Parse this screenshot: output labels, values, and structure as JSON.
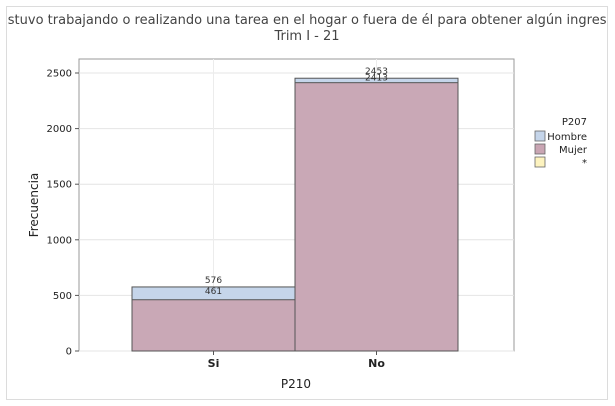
{
  "chart_data": {
    "type": "bar",
    "title": "¿Estuvo trabajando o realizando una tarea en el hogar o fuera de él para obtener algún ingreso?",
    "subtitle": "Trim I - 21",
    "xlabel": "P210",
    "ylabel": "Frecuencia",
    "categories": [
      "Si",
      "No"
    ],
    "ylim": [
      0,
      2600
    ],
    "yticks": [
      0,
      500,
      1000,
      1500,
      2000,
      2500
    ],
    "grid": true,
    "overlapping": true,
    "series": [
      {
        "name": "Hombre",
        "values": [
          576,
          2453
        ],
        "color": "#c5d5ea"
      },
      {
        "name": "Mujer",
        "values": [
          461,
          2413
        ],
        "color": "#c9a5b3"
      },
      {
        "name": "*",
        "values": [
          0,
          0
        ],
        "color": "#fdf3bf"
      }
    ],
    "data_labels": [
      {
        "category": "Si",
        "labels": [
          "576",
          "461"
        ]
      },
      {
        "category": "No",
        "labels": [
          "2453",
          "2413"
        ]
      }
    ],
    "legend": {
      "title": "P207",
      "position": "top-right"
    }
  }
}
